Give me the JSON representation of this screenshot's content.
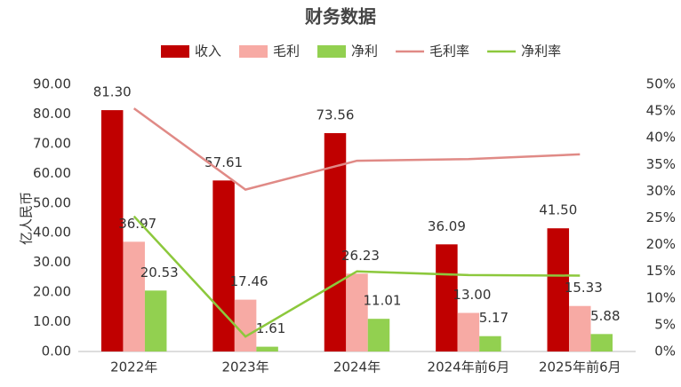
{
  "chart_data": {
    "type": "combo",
    "title": "财务数据",
    "y_label": "亿人民币",
    "categories": [
      "2022年",
      "2023年",
      "2024年",
      "2024年前6月",
      "2025年前6月"
    ],
    "series": [
      {
        "name": "收入",
        "type": "bar",
        "color": "#c00000",
        "values": [
          81.3,
          57.61,
          73.56,
          36.09,
          41.5
        ],
        "value_labels": [
          "81.30",
          "57.61",
          "73.56",
          "36.09",
          "41.50"
        ]
      },
      {
        "name": "毛利",
        "type": "bar",
        "color": "#f7aaa4",
        "values": [
          36.97,
          17.46,
          26.23,
          13.0,
          15.33
        ],
        "value_labels": [
          "36.97",
          "17.46",
          "26.23",
          "13.00",
          "15.33"
        ]
      },
      {
        "name": "净利",
        "type": "bar",
        "color": "#92d050",
        "values": [
          20.53,
          1.61,
          11.01,
          5.17,
          5.88
        ],
        "value_labels": [
          "20.53",
          "1.61",
          "11.01",
          "5.17",
          "5.88"
        ]
      },
      {
        "name": "毛利率",
        "type": "line",
        "axis": "y2",
        "color": "#e08a86",
        "values": [
          45.5,
          30.3,
          35.7,
          36.0,
          36.9
        ]
      },
      {
        "name": "净利率",
        "type": "line",
        "axis": "y2",
        "color": "#8cc83c",
        "values": [
          25.3,
          2.8,
          15.0,
          14.3,
          14.2
        ]
      }
    ],
    "ylim": [
      0,
      90
    ],
    "yticks": [
      {
        "value": 0,
        "label": "0.00"
      },
      {
        "value": 10,
        "label": "10.00"
      },
      {
        "value": 20,
        "label": "20.00"
      },
      {
        "value": 30,
        "label": "30.00"
      },
      {
        "value": 40,
        "label": "40.00"
      },
      {
        "value": 50,
        "label": "50.00"
      },
      {
        "value": 60,
        "label": "60.00"
      },
      {
        "value": 70,
        "label": "70.00"
      },
      {
        "value": 80,
        "label": "80.00"
      },
      {
        "value": 90,
        "label": "90.00"
      }
    ],
    "y2lim": [
      0,
      50
    ],
    "y2ticks": [
      {
        "value": 0,
        "label": "0%"
      },
      {
        "value": 5,
        "label": "5%"
      },
      {
        "value": 10,
        "label": "10%"
      },
      {
        "value": 15,
        "label": "15%"
      },
      {
        "value": 20,
        "label": "20%"
      },
      {
        "value": 25,
        "label": "25%"
      },
      {
        "value": 30,
        "label": "30%"
      },
      {
        "value": 35,
        "label": "35%"
      },
      {
        "value": 40,
        "label": "40%"
      },
      {
        "value": 45,
        "label": "45%"
      },
      {
        "value": 50,
        "label": "50%"
      }
    ],
    "grid": false
  }
}
